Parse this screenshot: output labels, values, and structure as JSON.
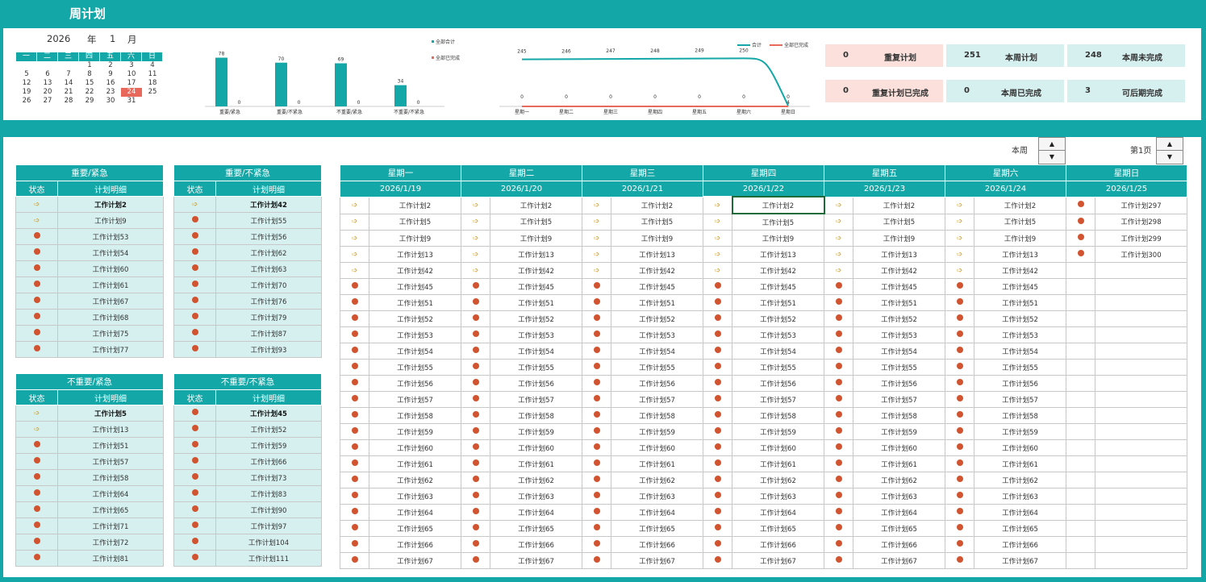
{
  "title": "周计划",
  "calendar": {
    "year": "2026",
    "year_label": "年",
    "month": "1",
    "month_label": "月",
    "weekdays": [
      "一",
      "二",
      "三",
      "四",
      "五",
      "六",
      "日"
    ],
    "weeks": [
      [
        "",
        "",
        "",
        "1",
        "2",
        "3",
        "4"
      ],
      [
        "5",
        "6",
        "7",
        "8",
        "9",
        "10",
        "11"
      ],
      [
        "12",
        "13",
        "14",
        "15",
        "16",
        "17",
        "18"
      ],
      [
        "19",
        "20",
        "21",
        "22",
        "23",
        "24",
        "25"
      ],
      [
        "26",
        "27",
        "28",
        "29",
        "30",
        "31",
        ""
      ]
    ],
    "selected": "24"
  },
  "chart_data": [
    {
      "type": "bar",
      "categories": [
        "重要/紧急",
        "重要/不紧急",
        "不重要/紧急",
        "不重要/不紧急"
      ],
      "series": [
        {
          "name": "全部合计",
          "values": [
            78,
            70,
            69,
            34
          ]
        },
        {
          "name": "全部已完成",
          "values": [
            0,
            0,
            0,
            0
          ]
        }
      ],
      "legend": "right",
      "colors": [
        "#14a7a7",
        "#e8685c"
      ]
    },
    {
      "type": "line",
      "categories": [
        "星期一",
        "星期二",
        "星期三",
        "星期四",
        "星期五",
        "星期六",
        "星期日"
      ],
      "series": [
        {
          "name": "合计",
          "values": [
            245,
            246,
            247,
            248,
            249,
            250,
            4
          ]
        },
        {
          "name": "全部已完成",
          "values": [
            0,
            0,
            0,
            0,
            0,
            0,
            0
          ]
        }
      ],
      "legend": "top-right",
      "colors": [
        "#14a7a7",
        "#e8685c"
      ]
    }
  ],
  "stats": [
    {
      "value": "0",
      "label": "重复计划",
      "style": "pink"
    },
    {
      "value": "251",
      "label": "本周计划",
      "style": "teal"
    },
    {
      "value": "248",
      "label": "本周未完成",
      "style": "teal"
    },
    {
      "value": "0",
      "label": "重复计划已完成",
      "style": "pink"
    },
    {
      "value": "0",
      "label": "本周已完成",
      "style": "teal"
    },
    {
      "value": "3",
      "label": "可后期完成",
      "style": "teal"
    }
  ],
  "controls": {
    "week_label": "本周",
    "page_label": "第1页"
  },
  "quadrants": [
    {
      "title": "重要/紧急",
      "col_status": "状态",
      "col_detail": "计划明细",
      "rows": [
        [
          "a",
          "工作计划2"
        ],
        [
          "a",
          "工作计划9"
        ],
        [
          "d",
          "工作计划53"
        ],
        [
          "d",
          "工作计划54"
        ],
        [
          "d",
          "工作计划60"
        ],
        [
          "d",
          "工作计划61"
        ],
        [
          "d",
          "工作计划67"
        ],
        [
          "d",
          "工作计划68"
        ],
        [
          "d",
          "工作计划75"
        ],
        [
          "d",
          "工作计划77"
        ]
      ]
    },
    {
      "title": "重要/不紧急",
      "col_status": "状态",
      "col_detail": "计划明细",
      "rows": [
        [
          "a",
          "工作计划42"
        ],
        [
          "d",
          "工作计划55"
        ],
        [
          "d",
          "工作计划56"
        ],
        [
          "d",
          "工作计划62"
        ],
        [
          "d",
          "工作计划63"
        ],
        [
          "d",
          "工作计划70"
        ],
        [
          "d",
          "工作计划76"
        ],
        [
          "d",
          "工作计划79"
        ],
        [
          "d",
          "工作计划87"
        ],
        [
          "d",
          "工作计划93"
        ]
      ]
    },
    {
      "title": "不重要/紧急",
      "col_status": "状态",
      "col_detail": "计划明细",
      "rows": [
        [
          "a",
          "工作计划5"
        ],
        [
          "a",
          "工作计划13"
        ],
        [
          "d",
          "工作计划51"
        ],
        [
          "d",
          "工作计划57"
        ],
        [
          "d",
          "工作计划58"
        ],
        [
          "d",
          "工作计划64"
        ],
        [
          "d",
          "工作计划65"
        ],
        [
          "d",
          "工作计划71"
        ],
        [
          "d",
          "工作计划72"
        ],
        [
          "d",
          "工作计划81"
        ]
      ]
    },
    {
      "title": "不重要/不紧急",
      "col_status": "状态",
      "col_detail": "计划明细",
      "rows": [
        [
          "d",
          "工作计划45"
        ],
        [
          "d",
          "工作计划52"
        ],
        [
          "d",
          "工作计划59"
        ],
        [
          "d",
          "工作计划66"
        ],
        [
          "d",
          "工作计划73"
        ],
        [
          "d",
          "工作计划83"
        ],
        [
          "d",
          "工作计划90"
        ],
        [
          "d",
          "工作计划97"
        ],
        [
          "d",
          "工作计划104"
        ],
        [
          "d",
          "工作计划111"
        ]
      ]
    }
  ],
  "week": {
    "days": [
      "星期一",
      "星期二",
      "星期三",
      "星期四",
      "星期五",
      "星期六",
      "星期日"
    ],
    "dates": [
      "2026/1/19",
      "2026/1/20",
      "2026/1/21",
      "2026/1/22",
      "2026/1/23",
      "2026/1/24",
      "2026/1/25"
    ],
    "common_rows": [
      [
        "a",
        "工作计划2"
      ],
      [
        "a",
        "工作计划5"
      ],
      [
        "a",
        "工作计划9"
      ],
      [
        "a",
        "工作计划13"
      ],
      [
        "a",
        "工作计划42"
      ],
      [
        "d",
        "工作计划45"
      ],
      [
        "d",
        "工作计划51"
      ],
      [
        "d",
        "工作计划52"
      ],
      [
        "d",
        "工作计划53"
      ],
      [
        "d",
        "工作计划54"
      ],
      [
        "d",
        "工作计划55"
      ],
      [
        "d",
        "工作计划56"
      ],
      [
        "d",
        "工作计划57"
      ],
      [
        "d",
        "工作计划58"
      ],
      [
        "d",
        "工作计划59"
      ],
      [
        "d",
        "工作计划60"
      ],
      [
        "d",
        "工作计划61"
      ],
      [
        "d",
        "工作计划62"
      ],
      [
        "d",
        "工作计划63"
      ],
      [
        "d",
        "工作计划64"
      ],
      [
        "d",
        "工作计划65"
      ],
      [
        "d",
        "工作计划66"
      ],
      [
        "d",
        "工作计划67"
      ]
    ],
    "sunday_rows": [
      [
        "d",
        "工作计划297"
      ],
      [
        "d",
        "工作计划298"
      ],
      [
        "d",
        "工作计划299"
      ],
      [
        "d",
        "工作计划300"
      ]
    ]
  }
}
